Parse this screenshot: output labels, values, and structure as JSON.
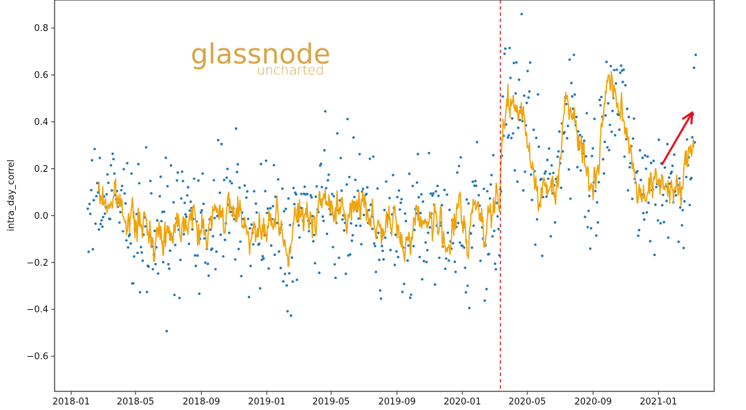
{
  "chart_data": {
    "type": "scatter",
    "title": "",
    "xlabel": "",
    "ylabel": "intra_day_correl",
    "xlim": [
      "2017-12-01",
      "2021-04-15"
    ],
    "ylim": [
      -0.75,
      0.92
    ],
    "x_ticks": [
      "2018-01",
      "2018-05",
      "2018-09",
      "2019-01",
      "2019-05",
      "2019-09",
      "2020-01",
      "2020-05",
      "2020-09",
      "2021-01"
    ],
    "y_ticks": [
      0.8,
      0.6,
      0.4,
      0.2,
      0.0,
      -0.2,
      -0.4,
      -0.6
    ],
    "y_tick_labels": [
      "0.8",
      "0.6",
      "0.4",
      "0.2",
      "0.0",
      "−0.2",
      "−0.4",
      "−0.6"
    ],
    "grid": false,
    "watermark": {
      "brand": "glassnode",
      "sub": "uncharted"
    },
    "vline": {
      "x": "2020-03-12",
      "color": "#d62728",
      "style": "dashed"
    },
    "arrow": {
      "from": [
        "2021-01-08",
        0.22
      ],
      "to": [
        "2021-03-05",
        0.44
      ],
      "color": "#e8111d"
    },
    "colors": {
      "scatter": "#1f77b4",
      "line": "#f0a30a",
      "arrow": "#e8111d",
      "vline": "#d62728",
      "brand": "#d7a545"
    },
    "series": [
      {
        "kind": "scatter",
        "start": "2018-02-01",
        "step_days": 1,
        "count": 765
      },
      {
        "kind": "line",
        "start": "2018-02-21",
        "step_days": 1,
        "anchors": [
          [
            "2018-02-21",
            0.08
          ],
          [
            "2018-03-10",
            0.05
          ],
          [
            "2018-03-25",
            0.08
          ],
          [
            "2018-04-10",
            0.02
          ],
          [
            "2018-04-25",
            -0.02
          ],
          [
            "2018-05-10",
            -0.04
          ],
          [
            "2018-05-25",
            -0.06
          ],
          [
            "2018-06-10",
            -0.1
          ],
          [
            "2018-06-25",
            -0.08
          ],
          [
            "2018-07-10",
            -0.05
          ],
          [
            "2018-07-25",
            -0.02
          ],
          [
            "2018-08-10",
            0.0
          ],
          [
            "2018-08-25",
            -0.05
          ],
          [
            "2018-09-10",
            -0.08
          ],
          [
            "2018-09-25",
            0.0
          ],
          [
            "2018-10-10",
            0.02
          ],
          [
            "2018-10-25",
            0.0
          ],
          [
            "2018-11-10",
            0.04
          ],
          [
            "2018-11-25",
            -0.05
          ],
          [
            "2018-12-10",
            -0.08
          ],
          [
            "2018-12-25",
            -0.09
          ],
          [
            "2019-01-10",
            -0.02
          ],
          [
            "2019-01-25",
            -0.06
          ],
          [
            "2019-02-10",
            -0.17
          ],
          [
            "2019-02-25",
            0.0
          ],
          [
            "2019-03-10",
            0.0
          ],
          [
            "2019-03-25",
            -0.04
          ],
          [
            "2019-04-10",
            0.08
          ],
          [
            "2019-04-25",
            0.03
          ],
          [
            "2019-05-10",
            0.05
          ],
          [
            "2019-05-25",
            -0.02
          ],
          [
            "2019-06-10",
            0.02
          ],
          [
            "2019-06-25",
            0.08
          ],
          [
            "2019-07-10",
            0.03
          ],
          [
            "2019-07-25",
            -0.04
          ],
          [
            "2019-08-10",
            -0.06
          ],
          [
            "2019-08-25",
            -0.03
          ],
          [
            "2019-09-10",
            -0.1
          ],
          [
            "2019-09-25",
            -0.1
          ],
          [
            "2019-10-10",
            0.02
          ],
          [
            "2019-10-25",
            -0.04
          ],
          [
            "2019-11-10",
            -0.01
          ],
          [
            "2019-11-25",
            -0.08
          ],
          [
            "2019-12-10",
            -0.12
          ],
          [
            "2019-12-25",
            0.05
          ],
          [
            "2020-01-10",
            -0.15
          ],
          [
            "2020-01-25",
            0.1
          ],
          [
            "2020-02-10",
            -0.05
          ],
          [
            "2020-02-25",
            0.03
          ],
          [
            "2020-03-10",
            0.04
          ],
          [
            "2020-03-15",
            0.3
          ],
          [
            "2020-03-25",
            0.52
          ],
          [
            "2020-04-10",
            0.42
          ],
          [
            "2020-04-25",
            0.46
          ],
          [
            "2020-05-10",
            0.2
          ],
          [
            "2020-05-25",
            0.08
          ],
          [
            "2020-06-10",
            0.12
          ],
          [
            "2020-06-25",
            0.12
          ],
          [
            "2020-07-10",
            0.48
          ],
          [
            "2020-07-25",
            0.48
          ],
          [
            "2020-08-10",
            0.3
          ],
          [
            "2020-08-25",
            0.12
          ],
          [
            "2020-09-10",
            0.2
          ],
          [
            "2020-09-25",
            0.56
          ],
          [
            "2020-10-10",
            0.55
          ],
          [
            "2020-10-25",
            0.4
          ],
          [
            "2020-11-10",
            0.3
          ],
          [
            "2020-11-25",
            0.08
          ],
          [
            "2020-12-10",
            0.12
          ],
          [
            "2020-12-25",
            0.13
          ],
          [
            "2021-01-10",
            0.15
          ],
          [
            "2021-01-25",
            0.12
          ],
          [
            "2021-02-10",
            0.08
          ],
          [
            "2021-02-25",
            0.26
          ],
          [
            "2021-03-08",
            0.33
          ]
        ]
      }
    ]
  }
}
